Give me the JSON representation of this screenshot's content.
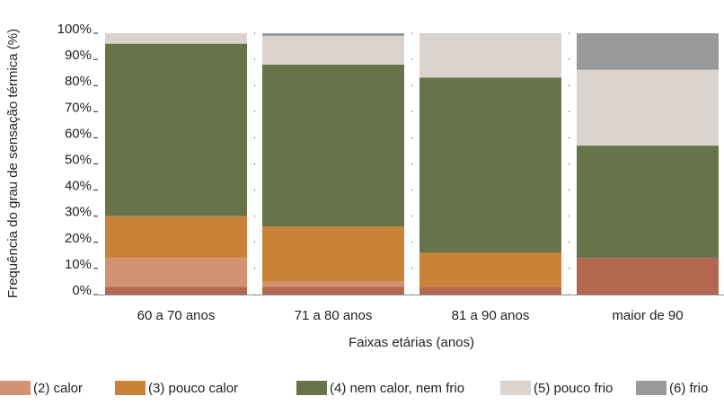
{
  "chart_data": {
    "type": "stacked_bar",
    "y_label": "Frequência do grau de sensação térmica (%)",
    "x_label": "Faixas etárias (anos)",
    "categories": [
      "60 a 70 anos",
      "71 a 80 anos",
      "81 a 90 anos",
      "maior de 90"
    ],
    "series": [
      {
        "color": "#b4674f",
        "values": [
          3,
          3,
          3,
          14
        ]
      },
      {
        "name": "(2) calor",
        "color": "#d39373",
        "values": [
          11,
          2,
          0,
          0
        ]
      },
      {
        "name": "(3) pouco calor",
        "color": "#c98237",
        "values": [
          16,
          21,
          13,
          0
        ]
      },
      {
        "name": "(4) nem calor, nem frio",
        "color": "#677348",
        "values": [
          66,
          62,
          67,
          43
        ]
      },
      {
        "name": "(5) pouco frio",
        "color": "#dbd3ce",
        "values": [
          4,
          11,
          17,
          29
        ]
      },
      {
        "name": "(6) frio",
        "color": "#9a9a9a",
        "values": [
          0,
          1,
          0,
          14
        ]
      }
    ],
    "ylim": [
      0,
      100
    ],
    "yticks": [
      {
        "value": 0,
        "label": "0%"
      },
      {
        "value": 10,
        "label": "10%"
      },
      {
        "value": 20,
        "label": "20%"
      },
      {
        "value": 30,
        "label": "30%"
      },
      {
        "value": 40,
        "label": "40%"
      },
      {
        "value": 50,
        "label": "50%"
      },
      {
        "value": 60,
        "label": "60%"
      },
      {
        "value": 70,
        "label": "70%"
      },
      {
        "value": 80,
        "label": "80%"
      },
      {
        "value": 90,
        "label": "90%"
      },
      {
        "value": 100,
        "label": "100%"
      }
    ],
    "grid": true
  }
}
